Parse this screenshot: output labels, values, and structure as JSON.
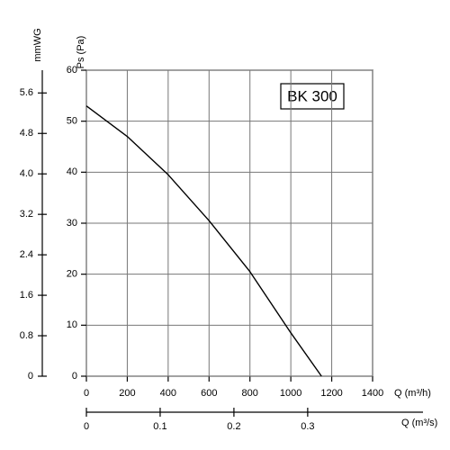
{
  "chart_data": {
    "type": "line",
    "title": "BK 300",
    "xlabel": "Q (m³/h)",
    "ylabel": "Ps (Pa)",
    "y2label": "mmWG",
    "x2label": "Q (m³/s)",
    "x": [
      0,
      200,
      400,
      600,
      800,
      1000,
      1150
    ],
    "series": [
      {
        "name": "BK 300",
        "color": "#000000",
        "values": [
          53,
          47,
          39.5,
          30.5,
          20.5,
          8.5,
          0
        ]
      }
    ],
    "xlim": [
      0,
      1400
    ],
    "xticks": [
      0,
      200,
      400,
      600,
      800,
      1000,
      1200,
      1400
    ],
    "ylim": [
      0,
      60
    ],
    "yticks": [
      0,
      10,
      20,
      30,
      40,
      50,
      60
    ],
    "y2lim": [
      0,
      6.05
    ],
    "y2ticks": [
      0,
      0.8,
      1.6,
      2.4,
      3.2,
      {
        "value": 4,
        "label": "4.0"
      },
      4.8,
      5.6
    ],
    "x2lim": [
      0,
      0.388
    ],
    "x2ticks": [
      0,
      0.1,
      0.2,
      0.3
    ],
    "grid": true
  }
}
